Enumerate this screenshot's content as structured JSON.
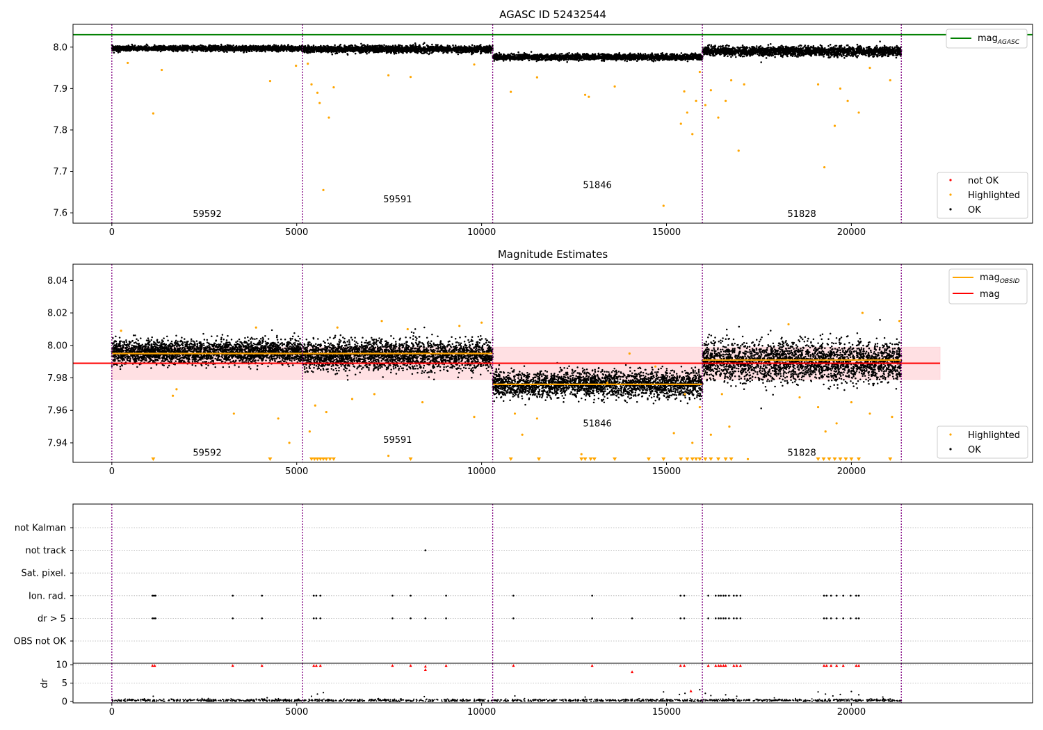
{
  "figure": {
    "title_top": "AGASC ID 52432544",
    "title_mid": "Magnitude Estimates"
  },
  "chart_data": [
    {
      "type": "scatter",
      "panel": "top",
      "title": "AGASC ID 52432544",
      "xlim": [
        -1050,
        24900
      ],
      "ylim": [
        7.575,
        8.055
      ],
      "x_ticks": [
        0,
        5000,
        10000,
        15000,
        20000
      ],
      "y_ticks": [
        7.6,
        7.7,
        7.8,
        7.9,
        8.0
      ],
      "y_tick_labels": [
        "7.6",
        "7.7",
        "7.8",
        "7.9",
        "8.0"
      ],
      "hlines": [
        {
          "name": "mag_AGASC",
          "value": 8.03,
          "color": "#008000"
        }
      ],
      "obs_boundaries": [
        0,
        5160,
        10300,
        15970,
        21350
      ],
      "obsids": [
        {
          "label": "59592",
          "x": 2580,
          "y": 7.59
        },
        {
          "label": "59591",
          "x": 7730,
          "y": 7.625
        },
        {
          "label": "51846",
          "x": 13130,
          "y": 7.66
        },
        {
          "label": "51828",
          "x": 18660,
          "y": 7.59
        }
      ],
      "series": [
        {
          "name": "OK",
          "color": "#000000",
          "segments": [
            {
              "x0": 0,
              "x1": 5160,
              "center": 7.997,
              "spread": 0.006
            },
            {
              "x0": 5160,
              "x1": 10300,
              "center": 7.995,
              "spread": 0.008
            },
            {
              "x0": 10300,
              "x1": 15970,
              "center": 7.976,
              "spread": 0.007
            },
            {
              "x0": 15970,
              "x1": 21350,
              "center": 7.99,
              "spread": 0.011
            }
          ]
        },
        {
          "name": "Highlighted",
          "color": "#ffa500",
          "points": [
            [
              1120,
              7.84
            ],
            [
              1350,
              7.945
            ],
            [
              430,
              7.962
            ],
            [
              4280,
              7.918
            ],
            [
              4980,
              7.955
            ],
            [
              5300,
              7.96
            ],
            [
              5400,
              7.91
            ],
            [
              5560,
              7.89
            ],
            [
              5620,
              7.865
            ],
            [
              5720,
              7.655
            ],
            [
              5870,
              7.83
            ],
            [
              6000,
              7.903
            ],
            [
              7480,
              7.932
            ],
            [
              8080,
              7.928
            ],
            [
              9800,
              7.958
            ],
            [
              10790,
              7.892
            ],
            [
              11500,
              7.927
            ],
            [
              12800,
              7.885
            ],
            [
              12900,
              7.88
            ],
            [
              13600,
              7.905
            ],
            [
              14920,
              7.617
            ],
            [
              15390,
              7.815
            ],
            [
              15480,
              7.893
            ],
            [
              15560,
              7.842
            ],
            [
              15700,
              7.79
            ],
            [
              15800,
              7.87
            ],
            [
              15900,
              7.94
            ],
            [
              16050,
              7.86
            ],
            [
              16200,
              7.896
            ],
            [
              16400,
              7.83
            ],
            [
              16600,
              7.87
            ],
            [
              16750,
              7.92
            ],
            [
              16950,
              7.75
            ],
            [
              17100,
              7.91
            ],
            [
              19100,
              7.91
            ],
            [
              19270,
              7.71
            ],
            [
              19550,
              7.81
            ],
            [
              19700,
              7.9
            ],
            [
              19900,
              7.87
            ],
            [
              20200,
              7.842
            ],
            [
              20500,
              7.95
            ],
            [
              21050,
              7.92
            ]
          ]
        },
        {
          "name": "not OK",
          "color": "#ff0000",
          "points": []
        }
      ],
      "legend_lines": [
        "mag_AGASC"
      ],
      "legend_points": [
        "not OK",
        "Highlighted",
        "OK"
      ],
      "legend_placement": [
        "top-right",
        "bottom-right"
      ]
    },
    {
      "type": "scatter",
      "panel": "middle",
      "title": "Magnitude Estimates",
      "xlim": [
        -1050,
        24900
      ],
      "ylim": [
        7.928,
        8.05
      ],
      "x_ticks": [
        0,
        5000,
        10000,
        15000,
        20000
      ],
      "y_ticks": [
        7.94,
        7.96,
        7.98,
        8.0,
        8.02,
        8.04
      ],
      "y_tick_labels": [
        "7.94",
        "7.96",
        "7.98",
        "8.00",
        "8.02",
        "8.04"
      ],
      "mag": 7.989,
      "mag_band": [
        7.979,
        7.999
      ],
      "mag_band_xrange": [
        0,
        22400
      ],
      "mag_obsid": [
        {
          "x0": 0,
          "x1": 10300,
          "value": 7.995
        },
        {
          "x0": 10300,
          "x1": 15970,
          "value": 7.976
        },
        {
          "x0": 15970,
          "x1": 21350,
          "value": 7.991
        }
      ],
      "obs_boundaries": [
        0,
        5160,
        10300,
        15970,
        21350
      ],
      "obsids": [
        {
          "label": "59592",
          "x": 2580,
          "y": 7.932
        },
        {
          "label": "59591",
          "x": 7730,
          "y": 7.94
        },
        {
          "label": "51846",
          "x": 13130,
          "y": 7.95
        },
        {
          "label": "51828",
          "x": 18660,
          "y": 7.932
        }
      ],
      "series": [
        {
          "name": "OK",
          "color": "#000000",
          "segments": [
            {
              "x0": 0,
              "x1": 5160,
              "center": 7.996,
              "spread": 0.007
            },
            {
              "x0": 5160,
              "x1": 10300,
              "center": 7.994,
              "spread": 0.009
            },
            {
              "x0": 10300,
              "x1": 15970,
              "center": 7.976,
              "spread": 0.008
            },
            {
              "x0": 15970,
              "x1": 21350,
              "center": 7.99,
              "spread": 0.012
            }
          ]
        },
        {
          "name": "Highlighted",
          "color": "#ffa500",
          "points": [
            [
              250,
              8.009
            ],
            [
              1650,
              7.969
            ],
            [
              1750,
              7.973
            ],
            [
              3300,
              7.958
            ],
            [
              3900,
              8.011
            ],
            [
              4500,
              7.955
            ],
            [
              4800,
              7.94
            ],
            [
              5350,
              7.947
            ],
            [
              5500,
              7.963
            ],
            [
              5800,
              7.959
            ],
            [
              6100,
              8.011
            ],
            [
              6500,
              7.967
            ],
            [
              7100,
              7.97
            ],
            [
              7300,
              8.015
            ],
            [
              8000,
              8.01
            ],
            [
              8400,
              7.965
            ],
            [
              9400,
              8.012
            ],
            [
              9800,
              7.956
            ],
            [
              10000,
              8.014
            ],
            [
              10900,
              7.958
            ],
            [
              11100,
              7.945
            ],
            [
              11500,
              7.955
            ],
            [
              12700,
              7.933
            ],
            [
              13400,
              7.977
            ],
            [
              14000,
              7.995
            ],
            [
              14700,
              7.987
            ],
            [
              15200,
              7.946
            ],
            [
              15500,
              7.97
            ],
            [
              15700,
              7.94
            ],
            [
              15900,
              7.962
            ],
            [
              16200,
              7.945
            ],
            [
              16500,
              7.97
            ],
            [
              16700,
              7.95
            ],
            [
              17200,
              7.93
            ],
            [
              18300,
              8.013
            ],
            [
              18600,
              7.968
            ],
            [
              19100,
              7.962
            ],
            [
              19300,
              7.947
            ],
            [
              19600,
              7.952
            ],
            [
              20000,
              7.965
            ],
            [
              20300,
              8.02
            ],
            [
              20500,
              7.958
            ],
            [
              21100,
              7.956
            ],
            [
              21300,
              8.015
            ],
            [
              7480,
              7.932
            ]
          ]
        }
      ],
      "below_range_markers": [
        1120,
        4280,
        5400,
        5480,
        5560,
        5640,
        5720,
        5800,
        5900,
        6000,
        8080,
        10790,
        11550,
        12700,
        12800,
        12950,
        13050,
        13600,
        14520,
        14920,
        15390,
        15560,
        15700,
        15800,
        15900,
        16050,
        16200,
        16400,
        16600,
        16750,
        19100,
        19250,
        19400,
        19550,
        19700,
        19850,
        20000,
        20200,
        21050
      ],
      "legend_lines": [
        "mag_OBSID",
        "mag"
      ],
      "legend_points": [
        "Highlighted",
        "OK"
      ],
      "legend_placement": [
        "top-right",
        "bottom-right"
      ]
    },
    {
      "type": "scatter",
      "panel": "flags",
      "xlim": [
        -1050,
        24900
      ],
      "categories": [
        "not Kalman",
        "not track",
        "Sat. pixel.",
        "Ion. rad.",
        "dr > 5",
        "OBS not OK"
      ],
      "obs_boundaries": [
        0,
        5160,
        10300,
        15970,
        21350
      ],
      "flags": {
        "not Kalman": [],
        "not track": [
          8480
        ],
        "Sat. pixel.": [],
        "Ion. rad.": [
          1100,
          1140,
          1180,
          3270,
          4060,
          5460,
          5530,
          5640,
          7590,
          8080,
          9040,
          10860,
          12990,
          15380,
          15480,
          16130,
          16330,
          16410,
          16470,
          16540,
          16600,
          16690,
          16820,
          16900,
          17000,
          19260,
          19330,
          19450,
          19600,
          19780,
          19980,
          20130,
          20200
        ],
        "dr > 5": [
          1100,
          1140,
          1180,
          3270,
          4060,
          5460,
          5530,
          5640,
          7590,
          8080,
          8480,
          9040,
          10860,
          12990,
          14070,
          15380,
          15480,
          16130,
          16330,
          16410,
          16470,
          16540,
          16600,
          16690,
          16820,
          16900,
          17000,
          19260,
          19330,
          19450,
          19600,
          19780,
          19980,
          20130,
          20200
        ],
        "OBS not OK": []
      }
    },
    {
      "type": "scatter",
      "panel": "dr",
      "ylabel": "dr",
      "xlim": [
        -1050,
        24900
      ],
      "ylim": [
        -0.4,
        10.4
      ],
      "x_ticks": [
        0,
        5000,
        10000,
        15000,
        20000
      ],
      "y_ticks": [
        0,
        5,
        10
      ],
      "y_tick_labels": [
        "0",
        "5",
        "10"
      ],
      "obs_boundaries": [
        0,
        5160,
        10300,
        15970,
        21350
      ],
      "series": [
        {
          "name": "OK",
          "color": "#000000",
          "baseline": 0.3,
          "spread": 0.35
        },
        {
          "name": "not OK",
          "color": "#ff0000",
          "points": [
            [
              1100,
              9.8
            ],
            [
              1160,
              9.8
            ],
            [
              3270,
              9.8
            ],
            [
              4060,
              9.8
            ],
            [
              5460,
              9.8
            ],
            [
              5530,
              9.8
            ],
            [
              5640,
              9.8
            ],
            [
              7590,
              9.8
            ],
            [
              8080,
              9.8
            ],
            [
              8480,
              9.6
            ],
            [
              8480,
              8.7
            ],
            [
              9040,
              9.8
            ],
            [
              10860,
              9.8
            ],
            [
              12990,
              9.8
            ],
            [
              14070,
              8.1
            ],
            [
              15380,
              9.8
            ],
            [
              15480,
              9.8
            ],
            [
              15660,
              2.9
            ],
            [
              16130,
              9.8
            ],
            [
              16330,
              9.8
            ],
            [
              16410,
              9.8
            ],
            [
              16470,
              9.8
            ],
            [
              16540,
              9.8
            ],
            [
              16600,
              9.8
            ],
            [
              16820,
              9.8
            ],
            [
              16900,
              9.8
            ],
            [
              17000,
              9.8
            ],
            [
              19260,
              9.8
            ],
            [
              19330,
              9.8
            ],
            [
              19450,
              9.8
            ],
            [
              19600,
              9.8
            ],
            [
              19780,
              9.8
            ],
            [
              20130,
              9.8
            ],
            [
              20200,
              9.8
            ]
          ]
        },
        {
          "name": "outliers",
          "color": "#000000",
          "points": [
            [
              1120,
              1.4
            ],
            [
              4200,
              1.0
            ],
            [
              5400,
              1.4
            ],
            [
              5560,
              2.0
            ],
            [
              5720,
              2.4
            ],
            [
              8450,
              1.3
            ],
            [
              10900,
              1.5
            ],
            [
              12800,
              1.2
            ],
            [
              14920,
              2.6
            ],
            [
              15350,
              1.9
            ],
            [
              15500,
              2.2
            ],
            [
              15900,
              3.2
            ],
            [
              16050,
              2.2
            ],
            [
              16200,
              1.6
            ],
            [
              16600,
              1.8
            ],
            [
              16900,
              1.4
            ],
            [
              19100,
              2.6
            ],
            [
              19300,
              2.0
            ],
            [
              19500,
              1.5
            ],
            [
              19700,
              1.9
            ],
            [
              20000,
              2.7
            ],
            [
              20200,
              1.8
            ],
            [
              20850,
              1.2
            ]
          ]
        }
      ]
    }
  ],
  "legends": {
    "top_line": "mag",
    "top_line_sub": "AGASC",
    "top_points": [
      "not OK",
      "Highlighted",
      "OK"
    ],
    "mid_line1": "mag",
    "mid_line1_sub": "OBSID",
    "mid_line2": "mag",
    "mid_points": [
      "Highlighted",
      "OK"
    ]
  },
  "colors": {
    "ok": "#000000",
    "highlighted": "#ffa500",
    "not_ok": "#ff0000",
    "mag_agasc": "#008000",
    "mag": "#ff0000",
    "mag_obsid": "#ffa500",
    "band": "#ffe0e3",
    "obs_boundary": "#800080"
  }
}
